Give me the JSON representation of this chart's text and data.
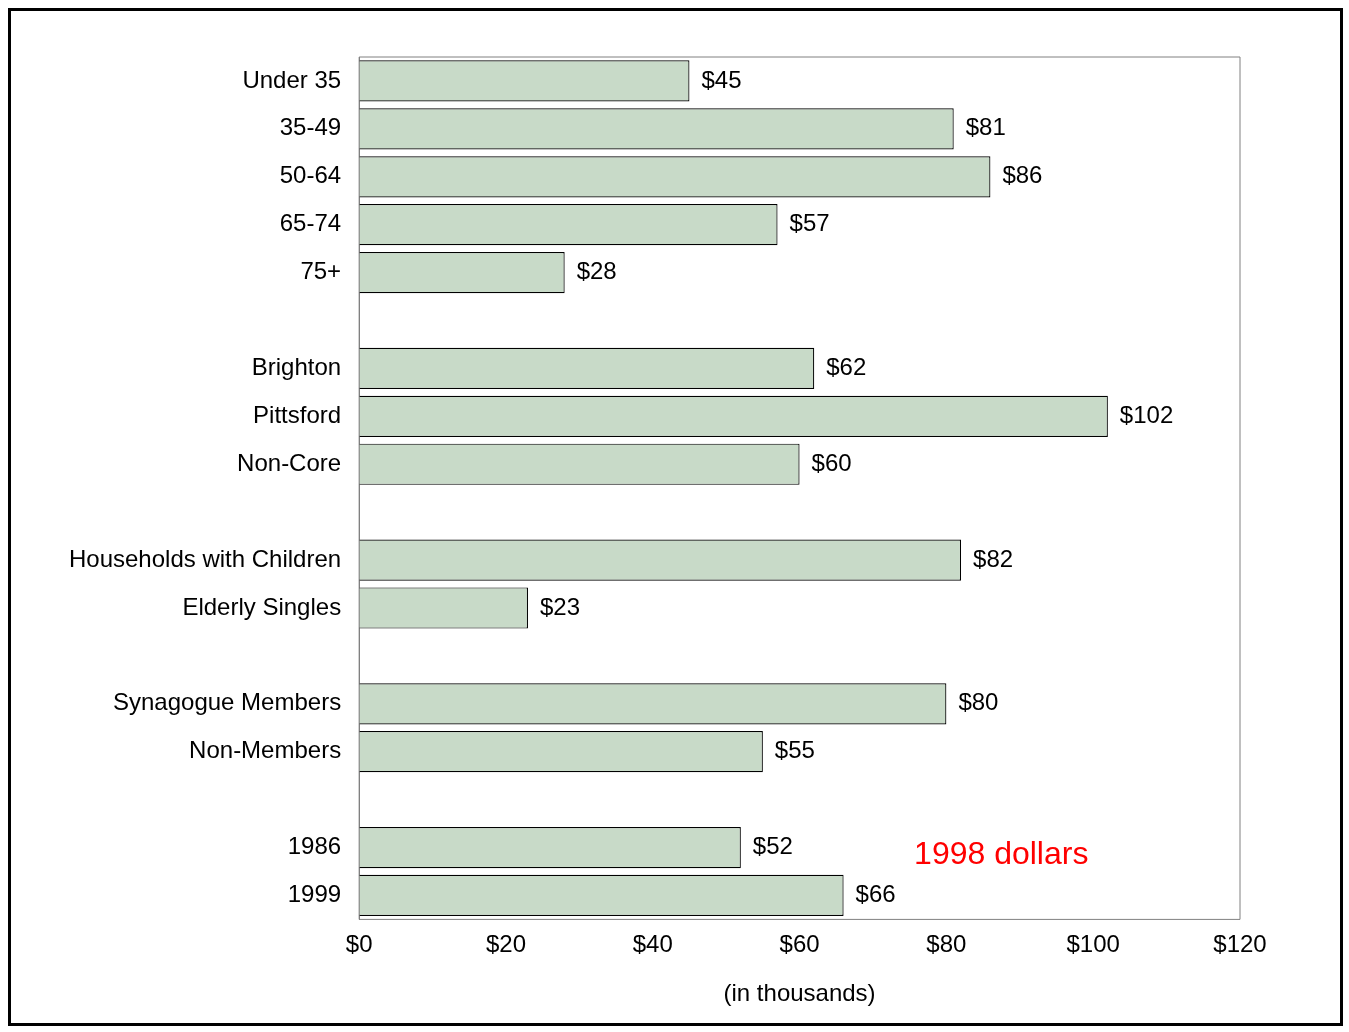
{
  "chart_data": {
    "type": "bar",
    "orientation": "horizontal",
    "xlabel": "(in thousands)",
    "categories": [
      "Under 35",
      "35-49",
      "50-64",
      "65-74",
      "75+",
      null,
      "Brighton",
      "Pittsford",
      "Non-Core",
      null,
      "Households with Children",
      "Elderly Singles",
      null,
      "Synagogue Members",
      "Non-Members",
      null,
      "1986",
      "1999"
    ],
    "values": [
      45,
      81,
      86,
      57,
      28,
      null,
      62,
      102,
      60,
      null,
      82,
      23,
      null,
      80,
      55,
      null,
      52,
      66
    ],
    "value_labels": [
      "$45",
      "$81",
      "$86",
      "$57",
      "$28",
      null,
      "$62",
      "$102",
      "$60",
      null,
      "$82",
      "$23",
      null,
      "$80",
      "$55",
      null,
      "$52",
      "$66"
    ],
    "color": "#c8dac8",
    "xlim": [
      0,
      120
    ],
    "xticks": [
      {
        "value": 0,
        "label": "$0"
      },
      {
        "value": 20,
        "label": "$20"
      },
      {
        "value": 40,
        "label": "$40"
      },
      {
        "value": 60,
        "label": "$60"
      },
      {
        "value": 80,
        "label": "$80"
      },
      {
        "value": 100,
        "label": "$100"
      },
      {
        "value": 120,
        "label": "$120"
      }
    ],
    "grid": false,
    "legend": false,
    "annotations": [
      "1998 dollars"
    ]
  }
}
